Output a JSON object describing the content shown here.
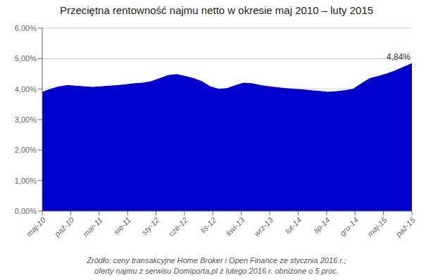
{
  "chart_data": {
    "type": "area",
    "title": "Przeciętna rentowność najmu netto w okresie maj 2010 – luty 2015",
    "color": "#0000CC",
    "grid": "y",
    "x": [
      0,
      0.295455,
      0.590909,
      0.886364,
      1.181818,
      1.477273,
      1.772727,
      2.068182,
      2.363636,
      2.659091,
      2.954545,
      3.25,
      3.545455,
      3.840909,
      4.136364,
      4.431818,
      4.727273,
      5.022727,
      5.318182,
      5.613636,
      5.909091,
      6.204545,
      6.5,
      6.795455,
      7.090909,
      7.386364,
      7.681818,
      7.977273,
      8.272727,
      8.568182,
      8.863636,
      9.159091,
      9.454545,
      9.75,
      10.045455,
      10.340909,
      10.636364,
      10.931818,
      11.227273,
      11.522727,
      11.818182,
      12.113636,
      12.409091,
      12.704545,
      13
    ],
    "values": [
      0.039,
      0.04,
      0.0408,
      0.0412,
      0.041,
      0.0408,
      0.0406,
      0.0408,
      0.041,
      0.0412,
      0.0415,
      0.0418,
      0.042,
      0.0425,
      0.0435,
      0.0445,
      0.0448,
      0.0442,
      0.0435,
      0.0425,
      0.0408,
      0.04,
      0.0402,
      0.0412,
      0.042,
      0.0418,
      0.0412,
      0.0408,
      0.0405,
      0.0402,
      0.04,
      0.0398,
      0.0395,
      0.0393,
      0.039,
      0.0392,
      0.0395,
      0.04,
      0.0418,
      0.0435,
      0.0442,
      0.045,
      0.046,
      0.0472,
      0.0484
    ],
    "xlim": [
      0,
      13
    ],
    "xticks": [
      {
        "value": 0,
        "label": "maj-10"
      },
      {
        "value": 1,
        "label": "paź-10"
      },
      {
        "value": 2,
        "label": "mar-11"
      },
      {
        "value": 3,
        "label": "sie-11"
      },
      {
        "value": 4,
        "label": "sty-12"
      },
      {
        "value": 5,
        "label": "cze-12"
      },
      {
        "value": 6,
        "label": "lis-12"
      },
      {
        "value": 7,
        "label": "kwi-13"
      },
      {
        "value": 8,
        "label": "wrz-13"
      },
      {
        "value": 9,
        "label": "lut-14"
      },
      {
        "value": 10,
        "label": "lip-14"
      },
      {
        "value": 11,
        "label": "gru-14"
      },
      {
        "value": 12,
        "label": "maj-15"
      },
      {
        "value": 13,
        "label": "paź-15"
      }
    ],
    "ylim": [
      0,
      0.06
    ],
    "yticks": [
      {
        "value": 0,
        "label": "0,00%"
      },
      {
        "value": 0.01,
        "label": "1,00%"
      },
      {
        "value": 0.02,
        "label": "2,00%"
      },
      {
        "value": 0.03,
        "label": "3,00%"
      },
      {
        "value": 0.04,
        "label": "4,00%"
      },
      {
        "value": 0.05,
        "label": "5,00%"
      },
      {
        "value": 0.06,
        "label": "6,00%"
      }
    ],
    "annotations": [
      {
        "text": "4,84%",
        "x": 13,
        "y": 0.0484
      }
    ],
    "footnote": [
      "Źródło: ceny transakcyjne Home Broker i Open Finance ze stycznia 2016 r.;",
      "oferty najmu z serwisu Domiporta.pl z lutego 2016 r. obniżone o 5 proc."
    ]
  }
}
